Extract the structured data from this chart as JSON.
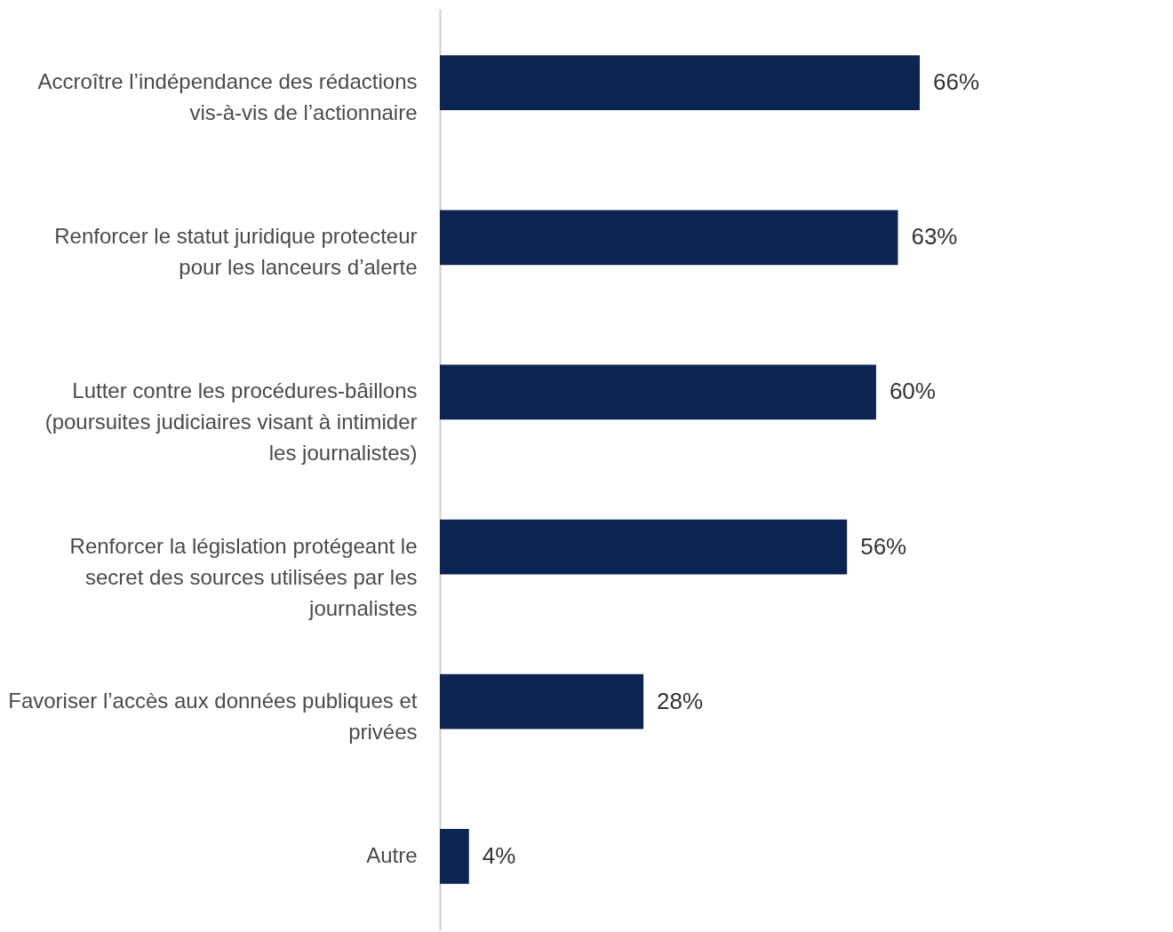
{
  "chart_data": {
    "type": "bar",
    "orientation": "horizontal",
    "categories": [
      "Accroître l’indépendance des rédactions vis-à-vis de l’actionnaire",
      "Renforcer le statut juridique protecteur pour les lanceurs d’alerte",
      "Lutter contre les procédures-bâillons (poursuites judiciaires visant à intimider les journalistes)",
      "Renforcer la législation protégeant le secret des sources utilisées par les journalistes",
      "Favoriser l’accès aux données publiques et privées",
      "Autre"
    ],
    "values": [
      66,
      63,
      60,
      56,
      28,
      4
    ],
    "value_labels": [
      "66%",
      "63%",
      "60%",
      "56%",
      "28%",
      "4%"
    ],
    "color": "#0b2452"
  }
}
